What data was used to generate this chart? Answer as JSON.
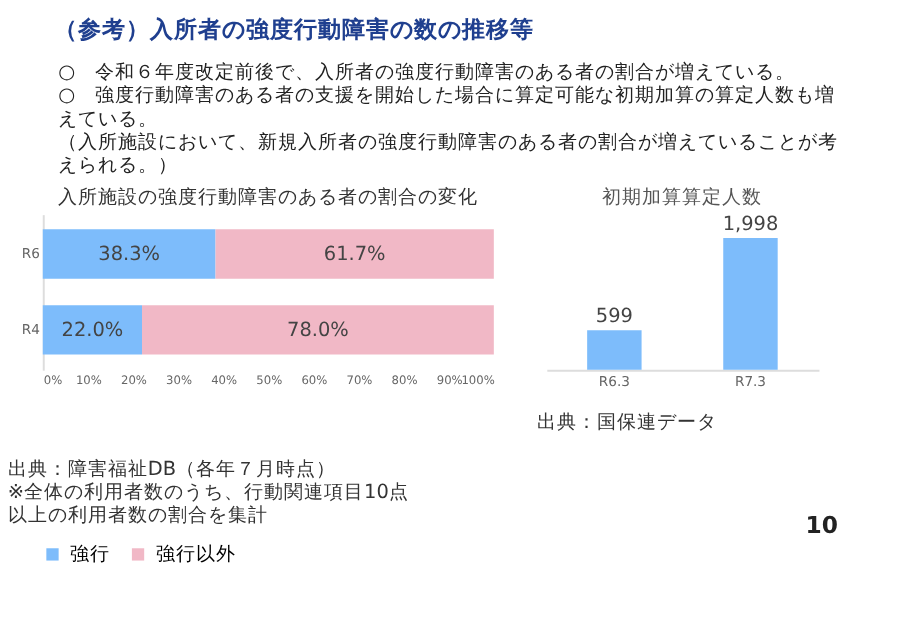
{
  "chart_data": [
    {
      "type": "bar",
      "orientation": "horizontal",
      "stacked": true,
      "title": "入所施設の強度行動障害のある者の割合の変化",
      "categories": [
        "R6",
        "R4"
      ],
      "series": [
        {
          "name": "強行",
          "color": "#7dbcfb",
          "values": [
            38.3,
            22.0
          ],
          "value_labels": [
            "38.3%",
            "22.0%"
          ]
        },
        {
          "name": "強行以外",
          "color": "#f1b8c6",
          "values": [
            61.7,
            78.0
          ],
          "value_labels": [
            "61.7%",
            "78.0%"
          ]
        }
      ],
      "xlim": [
        0,
        100
      ],
      "xticks": [
        {
          "value": 0,
          "label": "0%"
        },
        {
          "value": 10,
          "label": "10%"
        },
        {
          "value": 20,
          "label": "20%"
        },
        {
          "value": 30,
          "label": "30%"
        },
        {
          "value": 40,
          "label": "40%"
        },
        {
          "value": 50,
          "label": "50%"
        },
        {
          "value": 60,
          "label": "60%"
        },
        {
          "value": 70,
          "label": "70%"
        },
        {
          "value": 80,
          "label": "80%"
        },
        {
          "value": 90,
          "label": "90%"
        },
        {
          "value": 100,
          "label": "100%"
        }
      ],
      "legend": "bottom",
      "grid": false,
      "annotations": [
        "（参考）入所者の強度行動障害の数の推移等",
        "○　令和６年度改定前後で、入所者の強度行動障害のある者の割合が増えている。",
        "○　強度行動障害のある者の支援を開始した場合に算定可能な初期加算の算定人数も増えている。",
        "（入所施設において、新規入所者の強度行動障害のある者の割合が増えていることが考えられる。）",
        "出典：障害福祉DB（各年７月時点）",
        "※全体の利用者数のうち、行動関連項目10点以上の利用者数の割合を集計"
      ]
    },
    {
      "type": "bar",
      "title": "初期加算算定人数",
      "categories": [
        "R6.3",
        "R7.3"
      ],
      "values": [
        599,
        1998
      ],
      "color": "#7dbcfb",
      "value_labels": [
        "599",
        "1,998"
      ],
      "annotations": [
        "出典：国保連データ",
        "10"
      ]
    }
  ]
}
